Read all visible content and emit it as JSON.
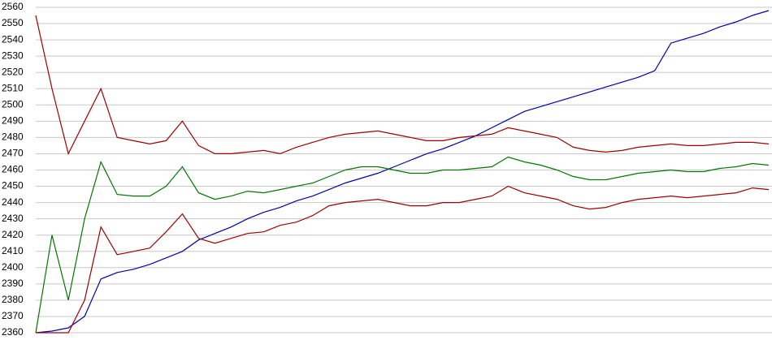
{
  "chart_data": {
    "type": "line",
    "ylim": [
      2360,
      2560
    ],
    "yticks": [
      2360,
      2370,
      2380,
      2390,
      2400,
      2410,
      2420,
      2430,
      2440,
      2450,
      2460,
      2470,
      2480,
      2490,
      2500,
      2510,
      2520,
      2530,
      2540,
      2550,
      2560
    ],
    "grid": true,
    "series": [
      {
        "color": "#0000b4",
        "values": [
          2360,
          2361,
          2363,
          2370,
          2393,
          2397,
          2399,
          2402,
          2406,
          2410,
          2417,
          2421,
          2425,
          2430,
          2434,
          2437,
          2441,
          2444,
          2448,
          2452,
          2455,
          2458,
          2462,
          2466,
          2470,
          2473,
          2477,
          2481,
          2486,
          2491,
          2496,
          2499,
          2502,
          2505,
          2508,
          2511,
          2514,
          2517,
          2521,
          2538,
          2541,
          2544,
          2548,
          2551,
          2555,
          2558
        ]
      },
      {
        "color": "#a00000",
        "values": [
          2555,
          2510,
          2470,
          2490,
          2510,
          2480,
          2478,
          2476,
          2478,
          2490,
          2475,
          2470,
          2470,
          2471,
          2472,
          2470,
          2474,
          2477,
          2480,
          2482,
          2483,
          2484,
          2482,
          2480,
          2478,
          2478,
          2480,
          2481,
          2482,
          2486,
          2484,
          2482,
          2480,
          2474,
          2472,
          2471,
          2472,
          2474,
          2475,
          2476,
          2475,
          2475,
          2476,
          2477,
          2477,
          2476
        ]
      },
      {
        "color": "#007800",
        "values": [
          2360,
          2420,
          2380,
          2430,
          2465,
          2445,
          2444,
          2444,
          2450,
          2462,
          2446,
          2442,
          2444,
          2447,
          2446,
          2448,
          2450,
          2452,
          2456,
          2460,
          2462,
          2462,
          2460,
          2458,
          2458,
          2460,
          2460,
          2461,
          2462,
          2468,
          2465,
          2463,
          2460,
          2456,
          2454,
          2454,
          2456,
          2458,
          2459,
          2460,
          2459,
          2459,
          2461,
          2462,
          2464,
          2463
        ]
      },
      {
        "color": "#a00000",
        "values": [
          2360,
          2360,
          2360,
          2380,
          2425,
          2408,
          2410,
          2412,
          2422,
          2433,
          2418,
          2415,
          2418,
          2421,
          2422,
          2426,
          2428,
          2432,
          2438,
          2440,
          2441,
          2442,
          2440,
          2438,
          2438,
          2440,
          2440,
          2442,
          2444,
          2450,
          2446,
          2444,
          2442,
          2438,
          2436,
          2437,
          2440,
          2442,
          2443,
          2444,
          2443,
          2444,
          2445,
          2446,
          2449,
          2448
        ]
      }
    ]
  }
}
